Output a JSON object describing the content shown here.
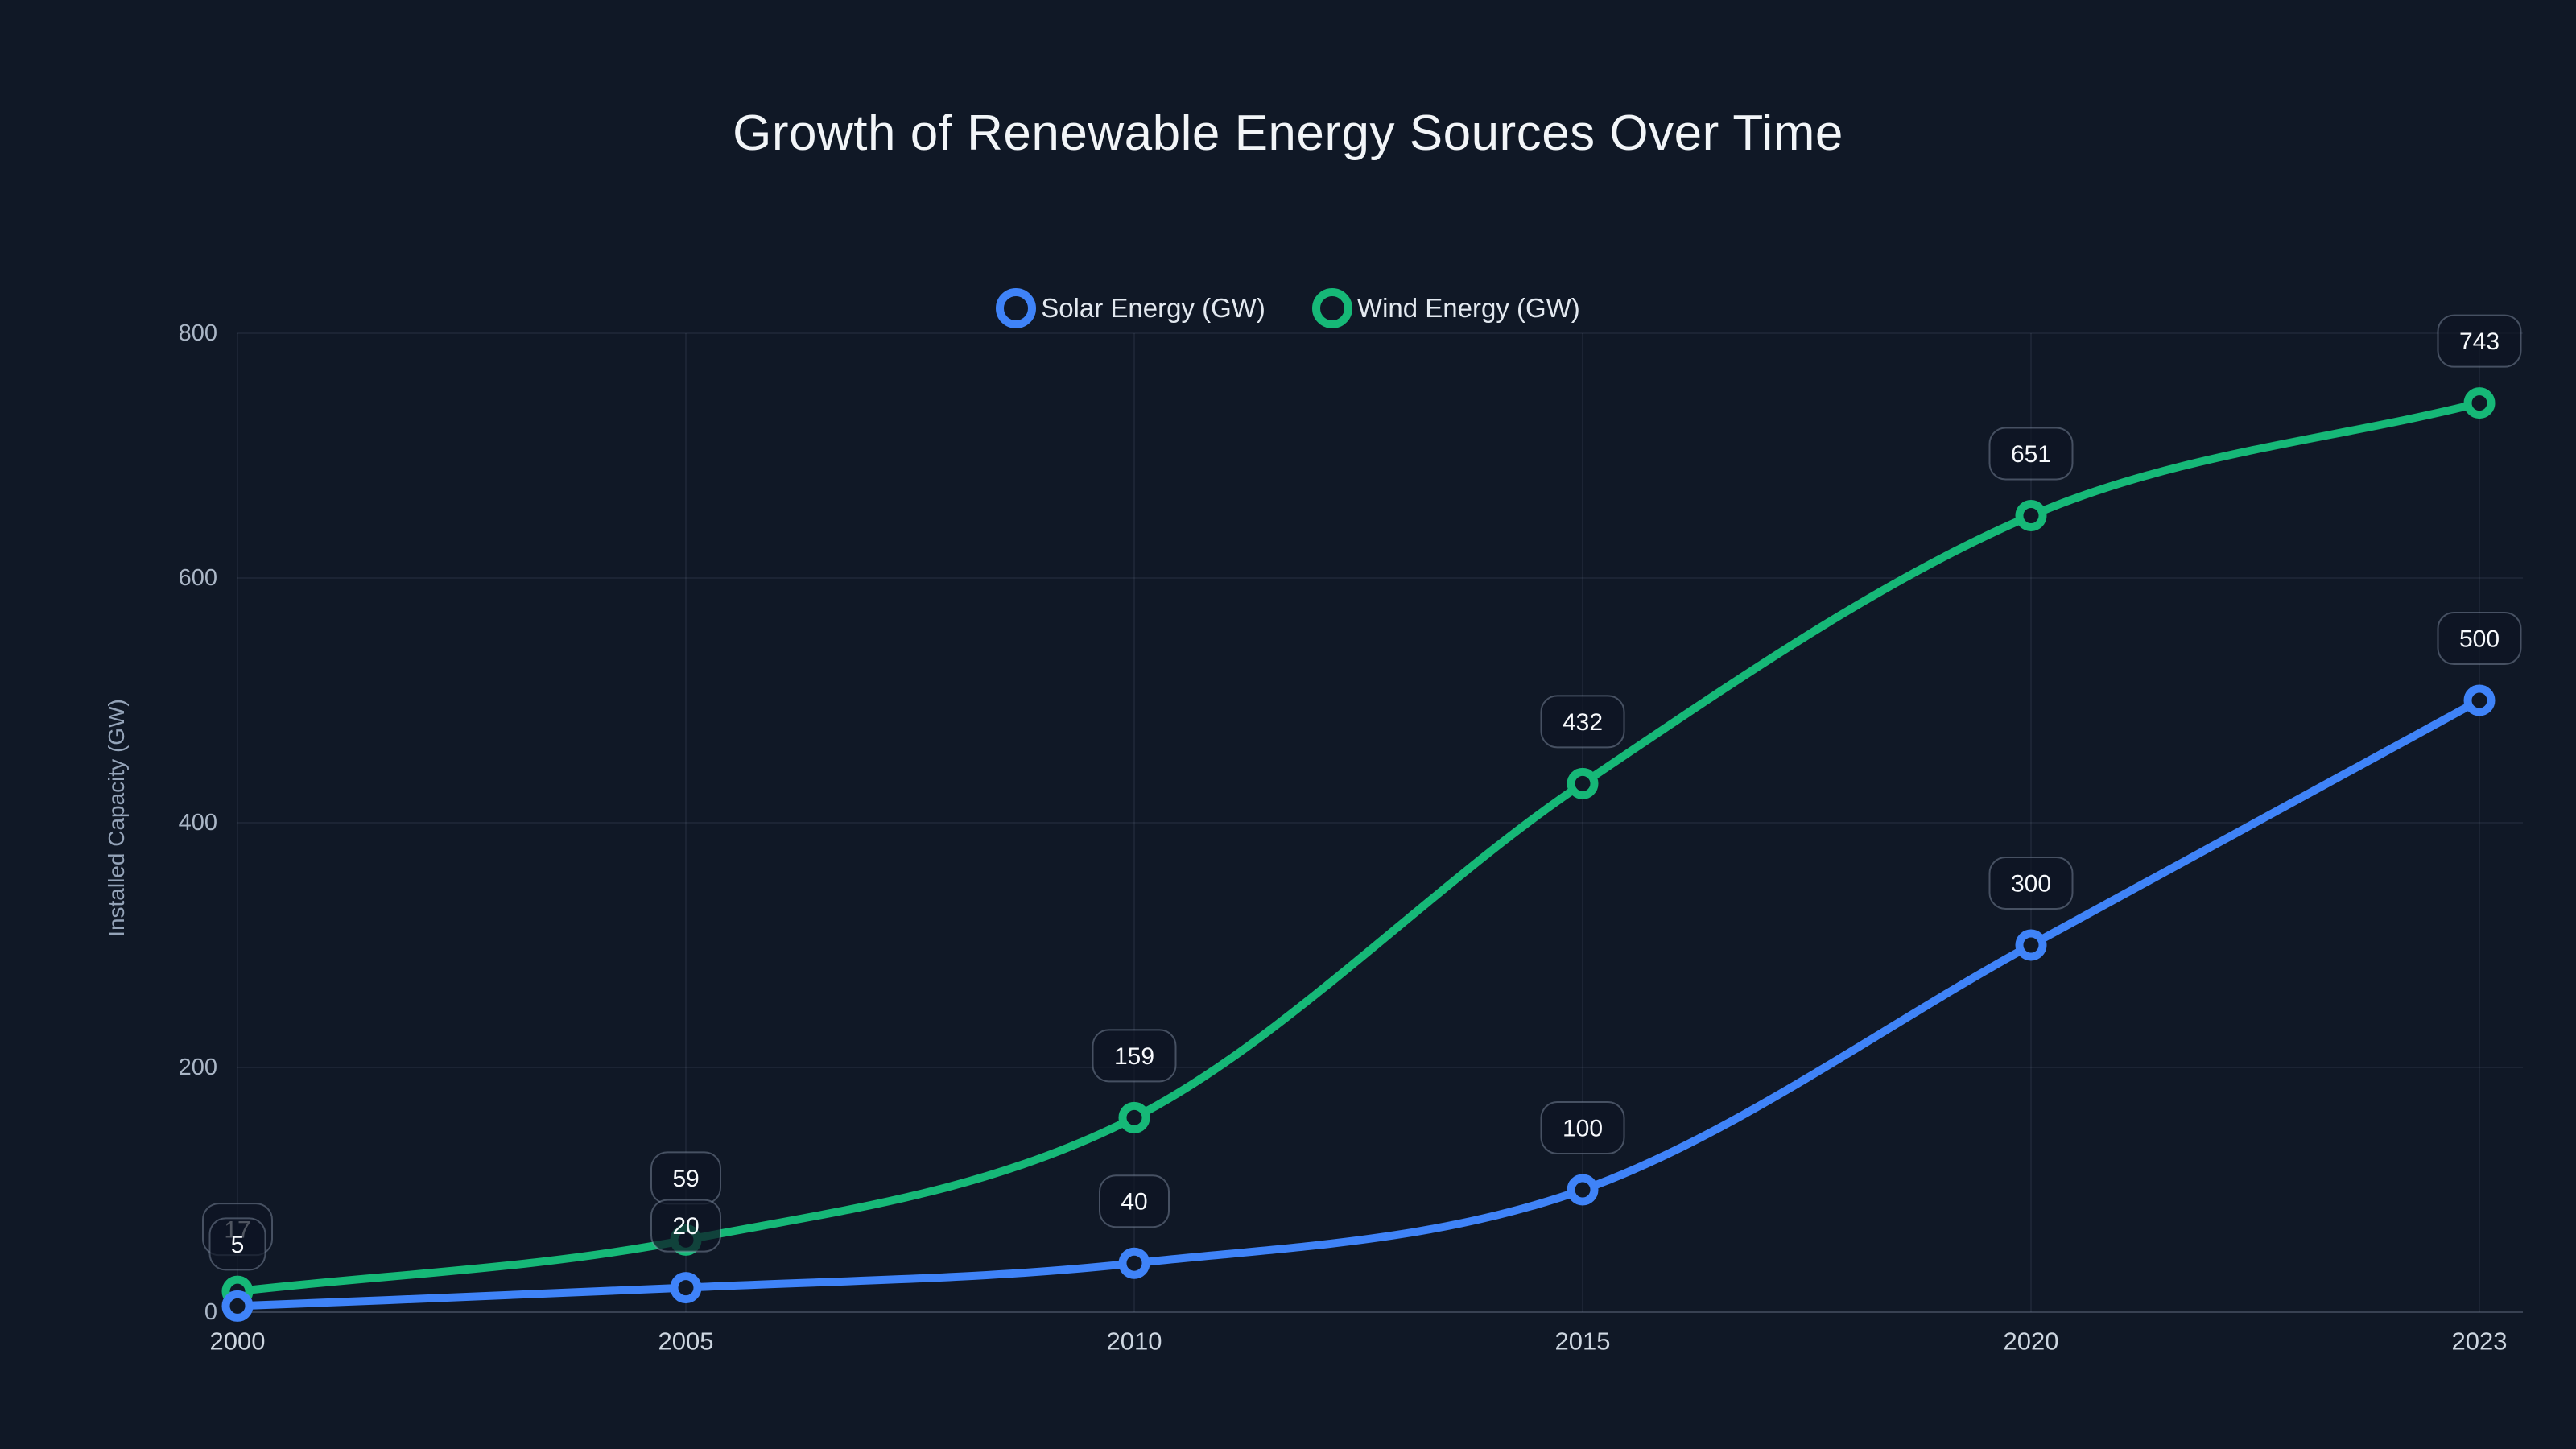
{
  "chart_data": {
    "type": "line",
    "title": "Growth of Renewable Energy Sources Over Time",
    "ylabel": "Installed Capacity (GW)",
    "xlabel": "",
    "categories": [
      "2000",
      "2005",
      "2010",
      "2015",
      "2020",
      "2023"
    ],
    "series": [
      {
        "name": "Solar Energy (GW)",
        "color": "#3f83f8",
        "values": [
          5,
          20,
          40,
          100,
          300,
          500
        ]
      },
      {
        "name": "Wind Energy (GW)",
        "color": "#16b877",
        "values": [
          17,
          59,
          159,
          432,
          651,
          743
        ]
      }
    ],
    "y_ticks": [
      0,
      200,
      400,
      600,
      800
    ],
    "ylim": [
      0,
      800
    ],
    "grid": true,
    "legend_position": "top",
    "point_labels": true,
    "curve": "monotone",
    "colors": {
      "background": "#101826",
      "gridline": "rgba(148,163,184,0.13)",
      "axis_line": "rgba(148,163,184,0.30)",
      "x_tick_text": "#cdd6e0",
      "y_tick_text": "#aab6c6",
      "point_label_text": "#f7f9fc",
      "point_label_border": "rgba(148,163,184,0.42)",
      "point_label_fill": "rgba(14,21,36,0.72)",
      "title_text": "#f2f5f8",
      "legend_text": "#e3e9f0",
      "y_axis_title_text": "#94a3b8"
    }
  }
}
